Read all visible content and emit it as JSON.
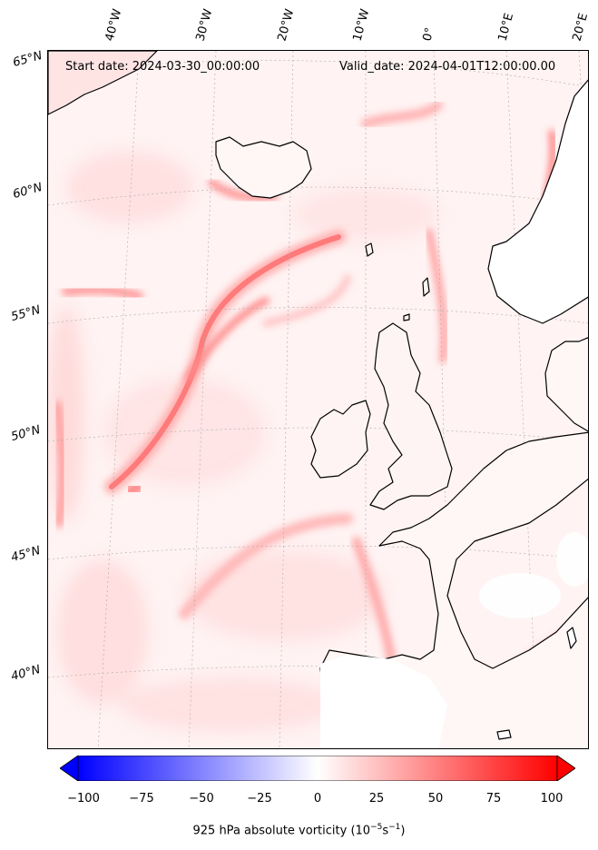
{
  "header": {
    "start_date": "Start date: 2024-03-30_00:00:00",
    "valid_date": "Valid_date: 2024-04-01T12:00:00.00"
  },
  "lon_labels": [
    "40°W",
    "30°W",
    "20°W",
    "10°W",
    "0°",
    "10°E",
    "20°E"
  ],
  "lat_labels": [
    "65°N",
    "60°N",
    "55°N",
    "50°N",
    "45°N",
    "40°N"
  ],
  "colorbar": {
    "ticks": [
      "−100",
      "−75",
      "−50",
      "−25",
      "0",
      "25",
      "50",
      "75",
      "100"
    ],
    "label_prefix": "925 hPa absolute vorticity (10",
    "label_exp1": "−5",
    "label_mid": "s",
    "label_exp2": "−1",
    "label_suffix": ")",
    "range": [
      -100,
      100
    ],
    "colormap": "bwr",
    "low_color": "#0000ff",
    "mid_color": "#ffffff",
    "high_color": "#ff0000"
  },
  "map": {
    "projection": "conic",
    "coastline_color": "#000000",
    "gridline_color": "#999999",
    "background_field_color": "#fff0f0"
  }
}
